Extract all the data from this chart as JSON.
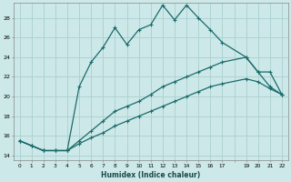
{
  "xlabel": "Humidex (Indice chaleur)",
  "ylabel": "",
  "bg_color": "#cde8e8",
  "grid_color": "#aacfcf",
  "line_color": "#1a6b6b",
  "xlim": [
    -0.5,
    22.5
  ],
  "ylim": [
    13.5,
    29.5
  ],
  "yticks": [
    14,
    16,
    18,
    20,
    22,
    24,
    26,
    28
  ],
  "xticks": [
    0,
    1,
    2,
    3,
    4,
    5,
    6,
    7,
    8,
    9,
    10,
    11,
    12,
    13,
    14,
    15,
    16,
    17,
    19,
    20,
    21,
    22
  ],
  "line1_x": [
    0,
    1,
    2,
    3,
    4,
    5,
    6,
    7,
    8,
    9,
    10,
    11,
    12,
    13,
    14,
    15,
    16,
    17,
    19,
    20,
    21,
    22
  ],
  "line1_y": [
    15.5,
    15.0,
    14.5,
    14.5,
    14.5,
    21.0,
    23.5,
    25.0,
    27.0,
    25.3,
    26.8,
    27.3,
    29.3,
    27.8,
    29.3,
    28.0,
    26.8,
    25.5,
    24.0,
    22.5,
    21.0,
    20.2
  ],
  "line2_x": [
    0,
    1,
    2,
    3,
    4,
    5,
    6,
    7,
    8,
    9,
    10,
    11,
    12,
    13,
    14,
    15,
    16,
    17,
    19,
    20,
    21,
    22
  ],
  "line2_y": [
    15.5,
    15.0,
    14.5,
    14.5,
    14.5,
    15.5,
    16.5,
    17.5,
    18.5,
    19.0,
    19.5,
    20.2,
    21.0,
    21.5,
    22.0,
    22.5,
    23.0,
    23.5,
    24.0,
    22.5,
    22.5,
    20.2
  ],
  "line3_x": [
    0,
    1,
    2,
    3,
    4,
    5,
    6,
    7,
    8,
    9,
    10,
    11,
    12,
    13,
    14,
    15,
    16,
    17,
    19,
    20,
    21,
    22
  ],
  "line3_y": [
    15.5,
    15.0,
    14.5,
    14.5,
    14.5,
    15.2,
    15.8,
    16.3,
    17.0,
    17.5,
    18.0,
    18.5,
    19.0,
    19.5,
    20.0,
    20.5,
    21.0,
    21.3,
    21.8,
    21.5,
    20.8,
    20.2
  ]
}
